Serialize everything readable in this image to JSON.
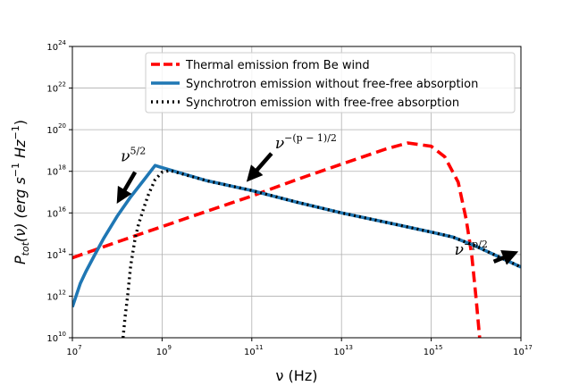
{
  "chart_data": {
    "type": "line",
    "title": "",
    "xlabel": "ν (Hz)",
    "ylabel_parts": [
      "P",
      "tot",
      "(ν) (erg s",
      "−1",
      " Hz",
      "−1",
      ")"
    ],
    "xscale": "log",
    "yscale": "log",
    "xlim": [
      10000000.0,
      1e+17
    ],
    "ylim": [
      10000000000.0,
      1e+24
    ],
    "x_ticks": [
      {
        "base": "10",
        "exp": "7"
      },
      {
        "base": "10",
        "exp": "9"
      },
      {
        "base": "10",
        "exp": "11"
      },
      {
        "base": "10",
        "exp": "13"
      },
      {
        "base": "10",
        "exp": "15"
      },
      {
        "base": "10",
        "exp": "17"
      }
    ],
    "y_ticks": [
      {
        "base": "10",
        "exp": "10"
      },
      {
        "base": "10",
        "exp": "12"
      },
      {
        "base": "10",
        "exp": "14"
      },
      {
        "base": "10",
        "exp": "16"
      },
      {
        "base": "10",
        "exp": "18"
      },
      {
        "base": "10",
        "exp": "20"
      },
      {
        "base": "10",
        "exp": "22"
      },
      {
        "base": "10",
        "exp": "24"
      }
    ],
    "grid": true,
    "legend_position": "top-right",
    "series": [
      {
        "name": "Thermal emission from Be wind",
        "color": "#ff0000",
        "style": "dashed",
        "x": [
          10000000.0,
          100000000.0,
          1000000000.0,
          10000000000.0,
          100000000000.0,
          1000000000000.0,
          10000000000000.0,
          100000000000000.0,
          300000000000000.0,
          1000000000000000.0,
          2000000000000000.0,
          4000000000000000.0,
          6000000000000000.0,
          8000000000000000.0,
          1e+16,
          1.2e+16
        ],
        "y": [
          70000000000000.0,
          400000000000000.0,
          2200000000000000.0,
          1.2e+16,
          6.5e+16,
          4e+17,
          2.2e+18,
          1.2e+19,
          2.3e+19,
          1.6e+19,
          5e+18,
          3e+17,
          5000000000000000.0,
          100000000000000.0,
          800000000000.0,
          10000000000.0
        ]
      },
      {
        "name": "Synchrotron emission without free-free absorption",
        "color": "#1f77b4",
        "style": "solid",
        "x": [
          10000000.0,
          15000000.0,
          20000000.0,
          30000000.0,
          50000000.0,
          100000000.0,
          200000000.0,
          400000000.0,
          700000000.0,
          1000000000.0,
          10000000000.0,
          100000000000.0,
          1000000000000.0,
          10000000000000.0,
          100000000000000.0,
          1000000000000000.0,
          3000000000000000.0,
          1e+16,
          1e+17
        ],
        "y": [
          300000000000.0,
          4000000000000.0,
          15000000000000.0,
          80000000000000.0,
          600000000000000.0,
          7000000000000000.0,
          6e+16,
          4e+17,
          1.9e+18,
          1.5e+18,
          3.5e+17,
          1.2e+17,
          3.3e+16,
          1e+16,
          3500000000000000.0,
          1200000000000000.0,
          700000000000000.0,
          250000000000000.0,
          25000000000000.0
        ]
      },
      {
        "name": "Synchrotron emission with free-free absorption",
        "color": "#000000",
        "style": "dotted",
        "x": [
          135000000.0,
          150000000.0,
          170000000.0,
          200000000.0,
          250000000.0,
          300000000.0,
          400000000.0,
          500000000.0,
          700000000.0,
          1000000000.0,
          1500000000.0,
          10000000000.0,
          100000000000.0,
          1000000000000.0,
          10000000000000.0,
          100000000000000.0,
          1000000000000000.0,
          3000000000000000.0,
          1e+16,
          1e+17
        ],
        "y": [
          10000000000.0,
          100000000000.0,
          1000000000000.0,
          30000000000000.0,
          600000000000000.0,
          3000000000000000.0,
          2e+16,
          8e+16,
          4e+17,
          9e+17,
          1.1e+18,
          3.5e+17,
          1.2e+17,
          3.3e+16,
          1e+16,
          3500000000000000.0,
          1200000000000000.0,
          700000000000000.0,
          250000000000000.0,
          25000000000000.0
        ]
      }
    ],
    "annotations": [
      {
        "base": "ν",
        "exp": "5/2",
        "x": 120000000.0,
        "y": 3e+18,
        "arrow_to": [
          120000000.0,
          6e+16
        ]
      },
      {
        "base": "ν",
        "exp": "−(p − 1)/2",
        "x": 330000000000.0,
        "y": 1.3e+19,
        "arrow_to": [
          100000000000.0,
          6e+17
        ]
      },
      {
        "base": "ν",
        "exp": "−p/2",
        "x": 3300000000000000.0,
        "y": 100000000000000.0,
        "arrow_to": [
          6e+16,
          100000000000000.0
        ]
      }
    ]
  }
}
